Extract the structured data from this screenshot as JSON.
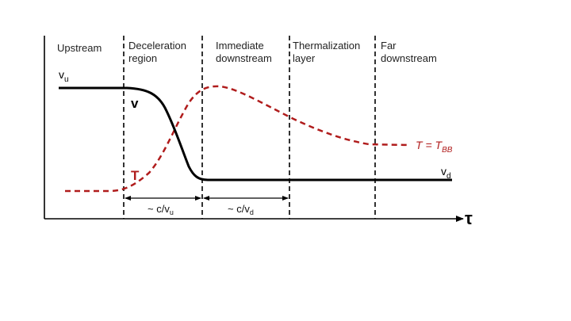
{
  "regions": [
    {
      "lines": [
        "Upstream"
      ]
    },
    {
      "lines": [
        "Deceleration",
        "region"
      ]
    },
    {
      "lines": [
        "Immediate",
        "downstream"
      ]
    },
    {
      "lines": [
        "Thermalization",
        "layer"
      ]
    },
    {
      "lines": [
        "Far",
        "downstream"
      ]
    }
  ],
  "labels": {
    "v_u_main": "v",
    "v_u_sub": "u",
    "v_curve": "v",
    "v_d_main": "v",
    "v_d_sub": "d",
    "T_curve": "T",
    "T_eq_main": "T = T",
    "T_eq_sub": "BB",
    "axis_tau": "τ",
    "interval1_main": "~ c/v",
    "interval1_sub": "u",
    "interval2_main": "~ c/v",
    "interval2_sub": "d"
  },
  "colors": {
    "velocity": "#000000",
    "temperature": "#b01c1c",
    "axis": "#000000"
  }
}
